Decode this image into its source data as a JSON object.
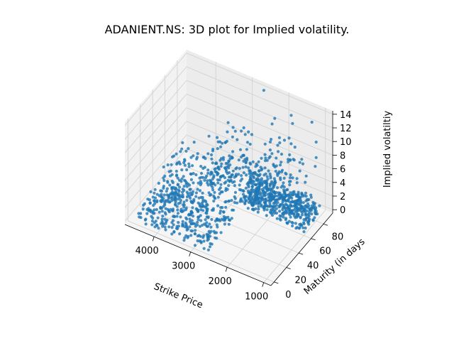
{
  "title": "ADANIENT.NS: 3D plot for Implied volatility.",
  "chart_data": {
    "type": "scatter",
    "projection": "3d",
    "title": "ADANIENT.NS: 3D plot for Implied volatility.",
    "xlabel": "Strike Price",
    "ylabel": "Maturity (in days",
    "zlabel": "Implied volatiltiy",
    "xlim": [
      800,
      4800
    ],
    "ylim": [
      -5,
      95
    ],
    "zlim": [
      -0.5,
      14.5
    ],
    "xticks": [
      "1000",
      "2000",
      "3000",
      "4000"
    ],
    "yticks": [
      "0",
      "20",
      "40",
      "60",
      "80"
    ],
    "zticks": [
      "0",
      "2",
      "4",
      "6",
      "8",
      "10",
      "12",
      "14"
    ],
    "grid": true,
    "marker_color": "#1f77b4",
    "series": [
      {
        "clusters": [
          {
            "x_range": [
              1000,
              2800
            ],
            "y_range": [
              60,
              90
            ],
            "z_range": [
              0,
              2.5
            ],
            "count": 480
          },
          {
            "x_range": [
              2600,
              4600
            ],
            "y_range": [
              0,
              45
            ],
            "z_range": [
              0,
              2
            ],
            "count": 330
          },
          {
            "x_range": [
              1500,
              3800
            ],
            "y_range": [
              50,
              90
            ],
            "z_range": [
              1,
              8
            ],
            "count": 260
          },
          {
            "x_range": [
              3200,
              4700
            ],
            "y_range": [
              30,
              90
            ],
            "z_range": [
              0,
              3
            ],
            "count": 180
          },
          {
            "x_range": [
              1000,
              2600
            ],
            "y_range": [
              55,
              90
            ],
            "z_range": [
              6,
              14
            ],
            "count": 40
          }
        ],
        "notable_points": [
          {
            "x": 1200,
            "y": 85,
            "z": 13
          },
          {
            "x": 2600,
            "y": 90,
            "z": 14
          },
          {
            "x": 1600,
            "y": 75,
            "z": 10
          }
        ]
      }
    ]
  }
}
